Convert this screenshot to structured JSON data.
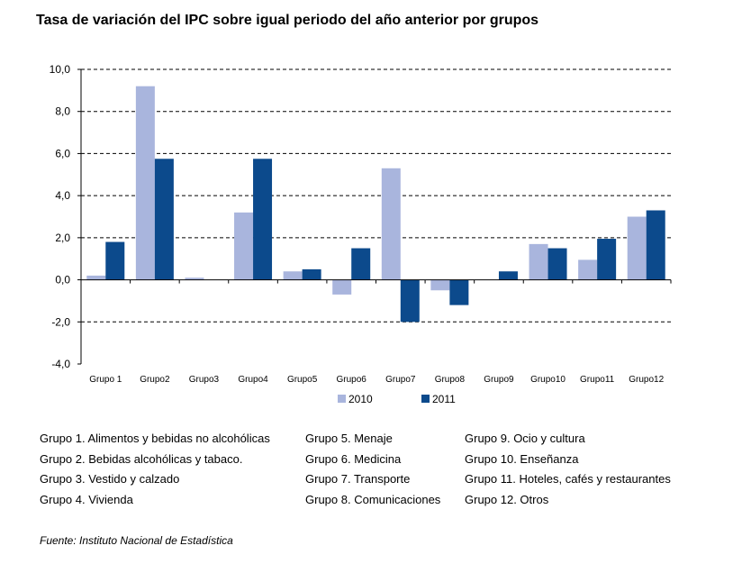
{
  "chart_data": {
    "type": "bar",
    "title": "Tasa de variación del IPC sobre igual periodo del año anterior por grupos",
    "categories": [
      "Grupo 1",
      "Grupo2",
      "Grupo3",
      "Grupo4",
      "Grupo5",
      "Grupo6",
      "Grupo7",
      "Grupo8",
      "Grupo9",
      "Grupo10",
      "Grupo11",
      "Grupo12"
    ],
    "series": [
      {
        "name": "2010",
        "values": [
          0.2,
          9.2,
          0.1,
          3.2,
          0.4,
          -0.7,
          5.3,
          -0.5,
          0.0,
          1.7,
          0.95,
          3.0
        ],
        "color": "#a9b5dd"
      },
      {
        "name": "2011",
        "values": [
          1.8,
          5.75,
          0.0,
          5.75,
          0.5,
          1.5,
          -2.0,
          -1.2,
          0.4,
          1.5,
          1.95,
          3.3
        ],
        "color": "#0c4a8c"
      }
    ],
    "ylim": [
      -4,
      10
    ],
    "yticks": [
      "-4,0",
      "-2,0",
      "0,0",
      "2,0",
      "4,0",
      "6,0",
      "8,0",
      "10,0"
    ],
    "ytick_values": [
      -4,
      -2,
      0,
      2,
      4,
      6,
      8,
      10
    ],
    "grid": true,
    "legend": "bottom"
  },
  "notes": {
    "col1": [
      "Grupo 1. Alimentos y bebidas no alcohólicas",
      "Grupo 2. Bebidas alcohólicas y  tabaco.",
      "Grupo 3. Vestido y calzado",
      "Grupo 4. Vivienda"
    ],
    "col2": [
      "Grupo 5. Menaje",
      "Grupo 6. Medicina",
      "Grupo 7. Transporte",
      "Grupo 8. Comunicaciones"
    ],
    "col3": [
      "Grupo 9. Ocio y cultura",
      "Grupo 10. Enseñanza",
      "Grupo 11. Hoteles, cafés y restaurantes",
      "Grupo 12. Otros"
    ]
  },
  "source": "Fuente: Instituto Nacional de Estadística"
}
